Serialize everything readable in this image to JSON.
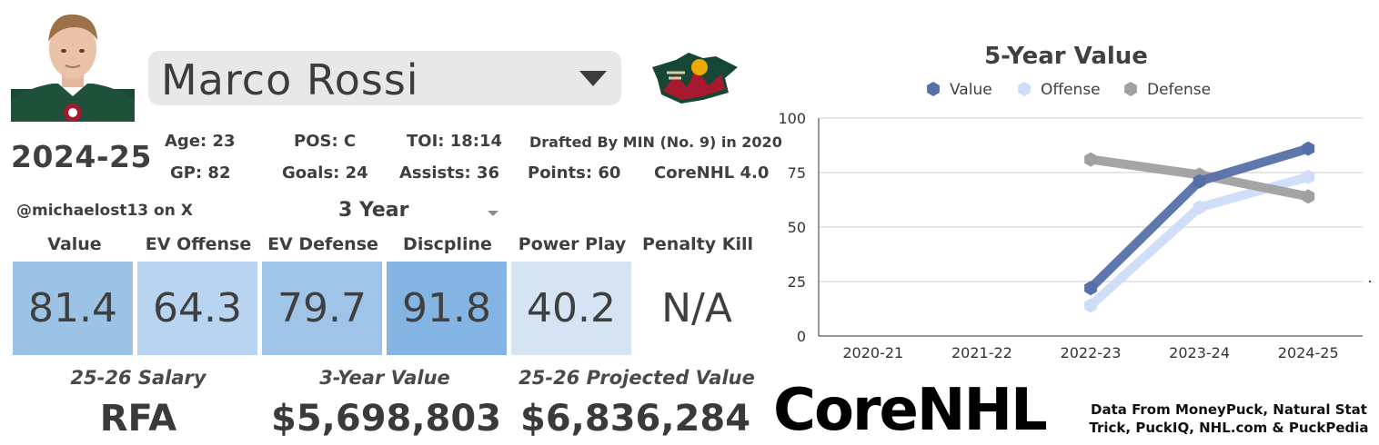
{
  "player": {
    "name": "Marco Rossi",
    "season": "2024-25"
  },
  "stats": {
    "age": "Age: 23",
    "pos": "POS: C",
    "toi": "TOI: 18:14",
    "drafted": "Drafted By MIN (No. 9) in 2020",
    "gp": "GP: 82",
    "goals": "Goals: 24",
    "assists": "Assists: 36",
    "points": "Points: 60",
    "model": "CoreNHL 4.0"
  },
  "handle": "@michaelost13 on X",
  "period": {
    "selected": "3 Year"
  },
  "metrics": [
    {
      "label": "Value",
      "value": "81.4",
      "color": "#9cc3e6"
    },
    {
      "label": "EV Offense",
      "value": "64.3",
      "color": "#b9d4f0"
    },
    {
      "label": "EV Defense",
      "value": "79.7",
      "color": "#9fc4e7"
    },
    {
      "label": "Discpline",
      "value": "91.8",
      "color": "#84b4e1"
    },
    {
      "label": "Power Play",
      "value": "40.2",
      "color": "#d5e3f2"
    },
    {
      "label": "Penalty Kill",
      "value": "N/A",
      "color": "#ffffff"
    }
  ],
  "contract": {
    "salary_label": "25-26 Salary",
    "salary_value": "RFA",
    "three_year_label": "3-Year Value",
    "three_year_value": "$5,698,803",
    "projected_label": "25-26 Projected Value",
    "projected_value": "$6,836,284"
  },
  "brand": {
    "logo_text": "CoreNHL"
  },
  "source_note": "Data From MoneyPuck, Natural Stat Trick, PuckIQ, NHL.com & PuckPedia",
  "chart_data": {
    "type": "line",
    "title": "5-Year Value",
    "categories": [
      "2020-21",
      "2021-22",
      "2022-23",
      "2023-24",
      "2024-25"
    ],
    "series": [
      {
        "name": "Value",
        "values": [
          null,
          null,
          22,
          71,
          86
        ],
        "color": "#5570a8"
      },
      {
        "name": "Offense",
        "values": [
          null,
          null,
          14,
          59,
          73
        ],
        "color": "#cfdcf7"
      },
      {
        "name": "Defense",
        "values": [
          null,
          null,
          81,
          74,
          64
        ],
        "color": "#a0a0a0"
      }
    ],
    "ylim": [
      0,
      100
    ],
    "yticks": [
      0,
      25,
      50,
      75,
      100
    ],
    "grid": true,
    "legend": "top"
  }
}
